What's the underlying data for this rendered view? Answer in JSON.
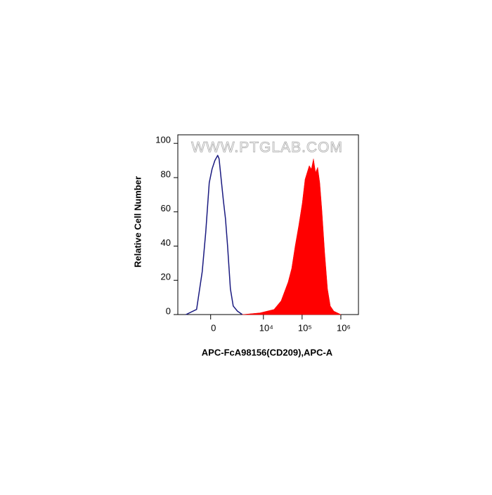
{
  "chart_data": {
    "type": "histogram-overlay",
    "watermark": "WWW.PTGLAB.COM",
    "x_label": "APC-FcA98156(CD209),APC-A",
    "y_label": "Relative Cell Number",
    "xscale": "biexponential",
    "xlim": [
      -3000,
      2850000
    ],
    "xticks": [
      0,
      {
        "value": 10000,
        "label": "10⁴"
      },
      {
        "value": 100000,
        "label": "10⁵"
      },
      {
        "value": 1000000,
        "label": "10⁶"
      }
    ],
    "ylim": [
      0,
      105
    ],
    "yticks": [
      0,
      20,
      40,
      60,
      80,
      100
    ],
    "series": [
      {
        "color": "#1a1a80",
        "filled": false,
        "x": [
          -1785,
          -816,
          -456,
          -258,
          -73,
          73,
          221,
          375,
          456,
          583,
          720,
          868,
          1030,
          1270,
          1549,
          2045,
          2793
        ],
        "values": [
          0,
          3,
          25,
          48,
          77,
          85,
          90,
          93,
          91,
          79,
          67,
          56,
          40,
          15,
          5,
          2,
          0
        ]
      },
      {
        "color": "#ff0000",
        "filled": true,
        "x": [
          2793,
          8135,
          18800,
          28600,
          43500,
          53700,
          66100,
          81600,
          100600,
          119000,
          134800,
          153000,
          173500,
          196500,
          222800,
          252600,
          286000,
          324500,
          383600,
          453500,
          536400,
          661500,
          1005000
        ],
        "values": [
          0,
          1,
          3,
          8,
          19,
          27,
          40,
          52,
          65,
          79,
          83,
          87,
          85,
          91,
          83,
          86,
          77,
          61,
          36,
          15,
          5,
          2,
          0
        ]
      }
    ]
  }
}
